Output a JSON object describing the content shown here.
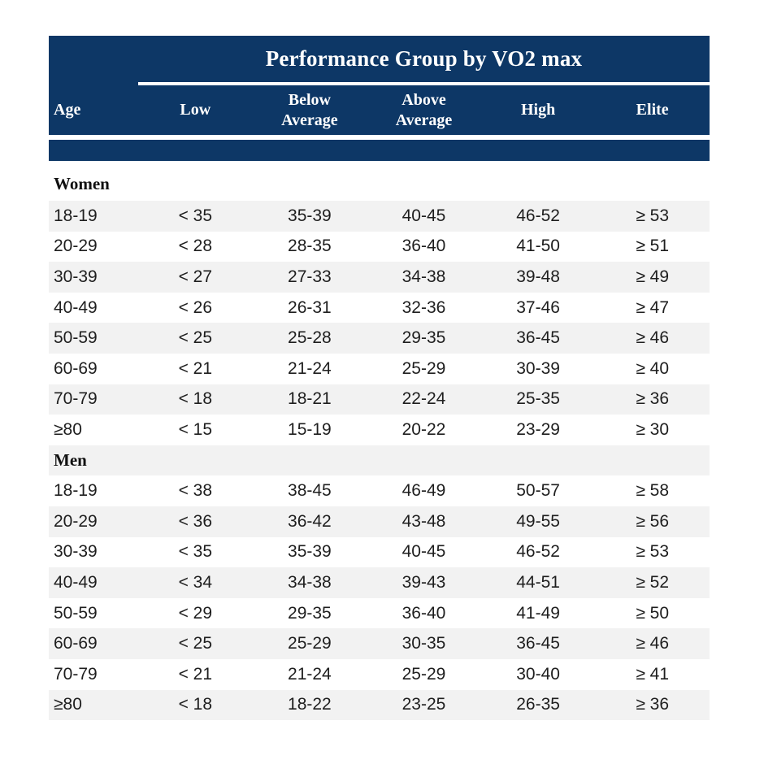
{
  "chart_data": {
    "type": "table",
    "title": "Performance Group by VO2 max",
    "columns": [
      "Age",
      "Low",
      "Below Average",
      "Above Average",
      "High",
      "Elite"
    ],
    "sections": [
      {
        "label": "Women",
        "rows": [
          [
            "18-19",
            "< 35",
            "35-39",
            "40-45",
            "46-52",
            "≥ 53"
          ],
          [
            "20-29",
            "< 28",
            "28-35",
            "36-40",
            "41-50",
            "≥ 51"
          ],
          [
            "30-39",
            "< 27",
            "27-33",
            "34-38",
            "39-48",
            "≥ 49"
          ],
          [
            "40-49",
            "< 26",
            "26-31",
            "32-36",
            "37-46",
            "≥ 47"
          ],
          [
            "50-59",
            "< 25",
            "25-28",
            "29-35",
            "36-45",
            "≥ 46"
          ],
          [
            "60-69",
            "< 21",
            "21-24",
            "25-29",
            "30-39",
            "≥ 40"
          ],
          [
            "70-79",
            "< 18",
            "18-21",
            "22-24",
            "25-35",
            "≥ 36"
          ],
          [
            "≥80",
            "< 15",
            "15-19",
            "20-22",
            "23-29",
            "≥ 30"
          ]
        ]
      },
      {
        "label": "Men",
        "rows": [
          [
            "18-19",
            "< 38",
            "38-45",
            "46-49",
            "50-57",
            "≥ 58"
          ],
          [
            "20-29",
            "< 36",
            "36-42",
            "43-48",
            "49-55",
            "≥ 56"
          ],
          [
            "30-39",
            "< 35",
            "35-39",
            "40-45",
            "46-52",
            "≥ 53"
          ],
          [
            "40-49",
            "< 34",
            "34-38",
            "39-43",
            "44-51",
            "≥ 52"
          ],
          [
            "50-59",
            "< 29",
            "29-35",
            "36-40",
            "41-49",
            "≥ 50"
          ],
          [
            "60-69",
            "< 25",
            "25-29",
            "30-35",
            "36-45",
            "≥ 46"
          ],
          [
            "70-79",
            "< 21",
            "21-24",
            "25-29",
            "30-40",
            "≥ 41"
          ],
          [
            "≥80",
            "< 18",
            "18-22",
            "23-25",
            "26-35",
            "≥ 36"
          ]
        ]
      }
    ],
    "layout": {
      "header_title_spans_columns": "Low through Elite",
      "row_striping": "alternating light gray, continuous through section headers"
    }
  },
  "colors": {
    "header_navy": "#0d3766",
    "row_alt": "#f2f2f2",
    "header_text": "#ffffff",
    "body_text": "#1e1e1e"
  }
}
